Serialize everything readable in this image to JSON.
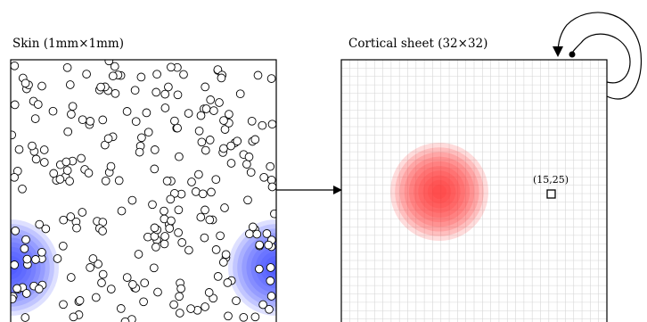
{
  "skin_panel": {
    "title": "Skin (1mm×1mm)",
    "receptor_style": {
      "fill": "#ffffff",
      "stroke": "#000000"
    }
  },
  "cortex_panel": {
    "title": "Cortical sheet (32×32)",
    "grid_size": 32,
    "marker_label": "(15,25)",
    "activation_color": "#ff3030"
  },
  "stimulus_color": "#3040ff",
  "arrow_color": "#000000"
}
